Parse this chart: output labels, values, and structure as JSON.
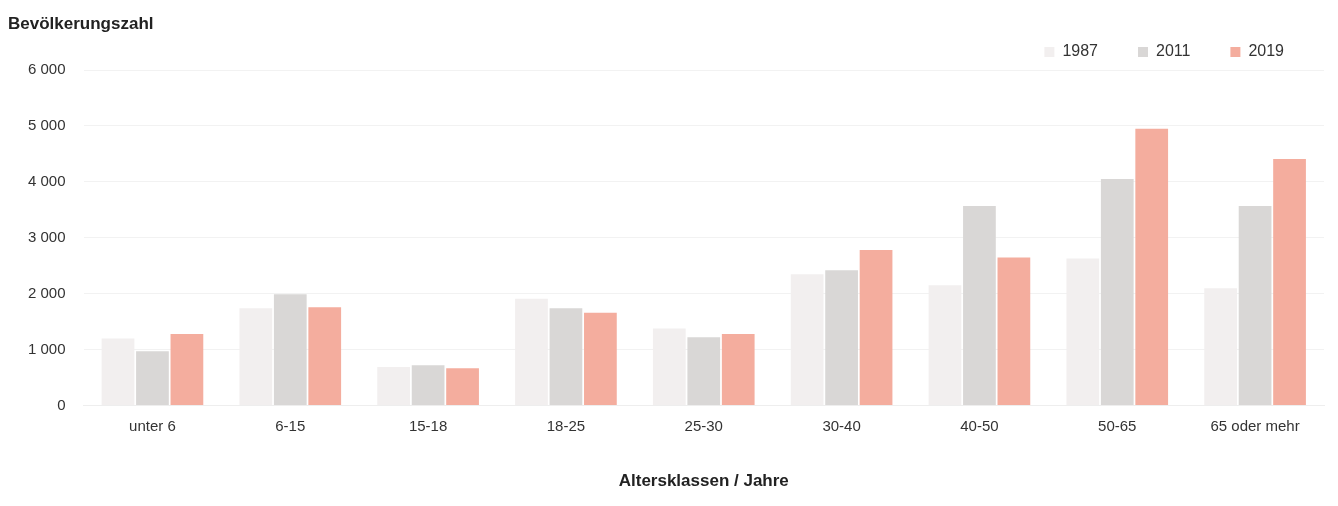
{
  "chart_data": {
    "type": "bar",
    "ylabel": "Bevölkerungszahl",
    "xlabel": "Altersklassen / Jahre",
    "categories": [
      "unter 6",
      "6-15",
      "15-18",
      "18-25",
      "25-30",
      "30-40",
      "40-50",
      "50-65",
      "65 oder mehr"
    ],
    "series": [
      {
        "name": "1987",
        "color": "#f2efef",
        "values": [
          1200,
          1740,
          690,
          1910,
          1380,
          2350,
          2150,
          2630,
          2100
        ]
      },
      {
        "name": "2011",
        "color": "#d9d7d6",
        "values": [
          970,
          1990,
          720,
          1740,
          1220,
          2420,
          3570,
          4050,
          3570
        ]
      },
      {
        "name": "2019",
        "color": "#f4ad9e",
        "values": [
          1280,
          1760,
          670,
          1660,
          1280,
          2780,
          2650,
          4950,
          4410
        ]
      }
    ],
    "ylim": [
      0,
      6000
    ],
    "yticks": [
      {
        "value": 0,
        "label": "0"
      },
      {
        "value": 1000,
        "label": "1 000"
      },
      {
        "value": 2000,
        "label": "2 000"
      },
      {
        "value": 3000,
        "label": "3 000"
      },
      {
        "value": 4000,
        "label": "4 000"
      },
      {
        "value": 5000,
        "label": "5 000"
      },
      {
        "value": 6000,
        "label": "6 000"
      }
    ],
    "grid": "y",
    "legend": "top right"
  }
}
